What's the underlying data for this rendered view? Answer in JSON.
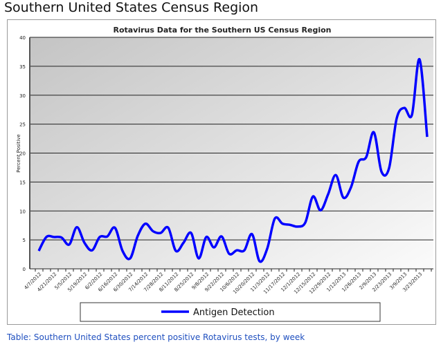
{
  "page_title": "Southern United States Census Region",
  "caption": "Table: Southern United States percent positive Rotavirus tests, by week",
  "chart_data": {
    "type": "line",
    "title": "Rotavirus Data for the Southern US Census Region",
    "xlabel": "",
    "ylabel": "Percent Positive",
    "ylim": [
      0,
      40
    ],
    "yticks": [
      0,
      5,
      10,
      15,
      20,
      25,
      30,
      35,
      40
    ],
    "grid": true,
    "legend_placement": "bottom",
    "x_tick_labels": [
      "4/7/2012",
      "4/21/2012",
      "5/5/2012",
      "5/19/2012",
      "6/2/2012",
      "6/16/2012",
      "6/30/2012",
      "7/14/2012",
      "7/28/2012",
      "8/11/2012",
      "8/25/2012",
      "9/8/2012",
      "9/22/2012",
      "10/6/2012",
      "10/20/2012",
      "11/3/2012",
      "11/17/2012",
      "12/1/2012",
      "12/15/2012",
      "12/29/2012",
      "1/12/2013",
      "1/26/2013",
      "2/9/2013",
      "2/23/2013",
      "3/9/2013",
      "3/23/2013"
    ],
    "series": [
      {
        "name": "Antigen Detection",
        "color": "#0000ff",
        "values": [
          3.1,
          5.5,
          5.5,
          5.4,
          4.2,
          7.2,
          4.5,
          3.2,
          5.5,
          5.6,
          7.1,
          3.1,
          1.8,
          5.7,
          7.8,
          6.5,
          6.2,
          7.1,
          3.1,
          4.5,
          6.2,
          1.8,
          5.5,
          3.7,
          5.6,
          2.6,
          3.2,
          3.2,
          6.0,
          1.3,
          3.5,
          8.7,
          7.8,
          7.6,
          7.3,
          8.0,
          12.5,
          10.1,
          12.9,
          16.2,
          12.3,
          14.1,
          18.5,
          19.3,
          23.6,
          16.8,
          17.4,
          26.0,
          27.8,
          26.6,
          36.2,
          22.8
        ]
      }
    ]
  }
}
